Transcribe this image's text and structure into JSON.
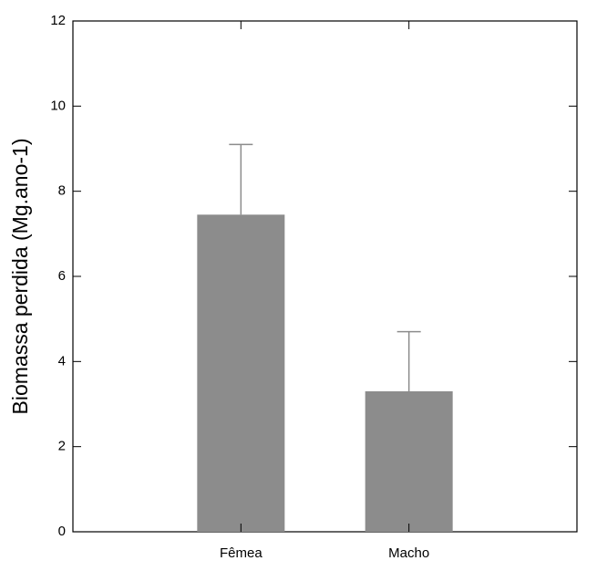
{
  "chart_data": {
    "type": "bar",
    "y_label": "Biomassa perdida (Mg.ano-1)",
    "categories": [
      "Fêmea",
      "Macho"
    ],
    "values": [
      7.45,
      3.3
    ],
    "errors": [
      1.65,
      1.4
    ],
    "color": "#8c8c8c",
    "ylim": [
      0,
      12
    ],
    "yticks": [
      0,
      2,
      4,
      6,
      8,
      10,
      12
    ],
    "grid": false
  }
}
